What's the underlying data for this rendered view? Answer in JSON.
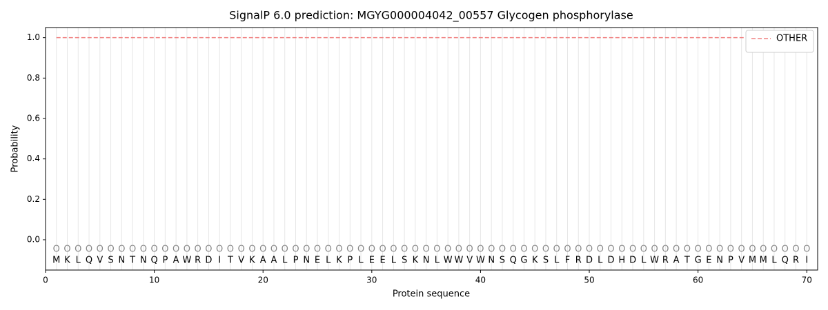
{
  "chart_data": {
    "type": "line",
    "title": "SignalP 6.0 prediction: MGYG000004042_00557 Glycogen phosphorylase",
    "x_label": "Protein sequence",
    "y_label": "Probability",
    "x": [
      1,
      2,
      3,
      4,
      5,
      6,
      7,
      8,
      9,
      10,
      11,
      12,
      13,
      14,
      15,
      16,
      17,
      18,
      19,
      20,
      21,
      22,
      23,
      24,
      25,
      26,
      27,
      28,
      29,
      30,
      31,
      32,
      33,
      34,
      35,
      36,
      37,
      38,
      39,
      40,
      41,
      42,
      43,
      44,
      45,
      46,
      47,
      48,
      49,
      50,
      51,
      52,
      53,
      54,
      55,
      56,
      57,
      58,
      59,
      60,
      61,
      62,
      63,
      64,
      65,
      66,
      67,
      68,
      69,
      70
    ],
    "sequence": [
      "M",
      "K",
      "L",
      "Q",
      "V",
      "S",
      "N",
      "T",
      "N",
      "Q",
      "P",
      "A",
      "W",
      "R",
      "D",
      "I",
      "T",
      "V",
      "K",
      "A",
      "A",
      "L",
      "P",
      "N",
      "E",
      "L",
      "K",
      "P",
      "L",
      "E",
      "E",
      "L",
      "S",
      "K",
      "N",
      "L",
      "W",
      "W",
      "V",
      "W",
      "N",
      "S",
      "Q",
      "G",
      "K",
      "S",
      "L",
      "F",
      "R",
      "D",
      "L",
      "D",
      "H",
      "D",
      "L",
      "W",
      "R",
      "A",
      "T",
      "G",
      "E",
      "N",
      "P",
      "V",
      "M",
      "M",
      "L",
      "Q",
      "R",
      "I"
    ],
    "predicted": [
      "O",
      "O",
      "O",
      "O",
      "O",
      "O",
      "O",
      "O",
      "O",
      "O",
      "O",
      "O",
      "O",
      "O",
      "O",
      "O",
      "O",
      "O",
      "O",
      "O",
      "O",
      "O",
      "O",
      "O",
      "O",
      "O",
      "O",
      "O",
      "O",
      "O",
      "O",
      "O",
      "O",
      "O",
      "O",
      "O",
      "O",
      "O",
      "O",
      "O",
      "O",
      "O",
      "O",
      "O",
      "O",
      "O",
      "O",
      "O",
      "O",
      "O",
      "O",
      "O",
      "O",
      "O",
      "O",
      "O",
      "O",
      "O",
      "O",
      "O",
      "O",
      "O",
      "O",
      "O",
      "O",
      "O",
      "O",
      "O",
      "O",
      "O"
    ],
    "series": [
      {
        "name": "OTHER",
        "color": "#f08080",
        "dashed": true,
        "values": [
          1,
          1,
          1,
          1,
          1,
          1,
          1,
          1,
          1,
          1,
          1,
          1,
          1,
          1,
          1,
          1,
          1,
          1,
          1,
          1,
          1,
          1,
          1,
          1,
          1,
          1,
          1,
          1,
          1,
          1,
          1,
          1,
          1,
          1,
          1,
          1,
          1,
          1,
          1,
          1,
          1,
          1,
          1,
          1,
          1,
          1,
          1,
          1,
          1,
          1,
          1,
          1,
          1,
          1,
          1,
          1,
          1,
          1,
          1,
          1,
          1,
          1,
          1,
          1,
          1,
          1,
          1,
          1,
          1,
          1
        ]
      }
    ],
    "xlim": [
      0,
      71
    ],
    "ylim": [
      -0.15,
      1.05
    ],
    "xticks": [
      0,
      10,
      20,
      30,
      40,
      50,
      60,
      70
    ],
    "yticks": [
      {
        "value": 0,
        "label": "0.0"
      },
      {
        "value": 0.2,
        "label": "0.2"
      },
      {
        "value": 0.4,
        "label": "0.4"
      },
      {
        "value": 0.6,
        "label": "0.6"
      },
      {
        "value": 0.8,
        "label": "0.8"
      },
      {
        "value": 1,
        "label": "1.0"
      }
    ],
    "legend": "upper right",
    "grid": true
  }
}
